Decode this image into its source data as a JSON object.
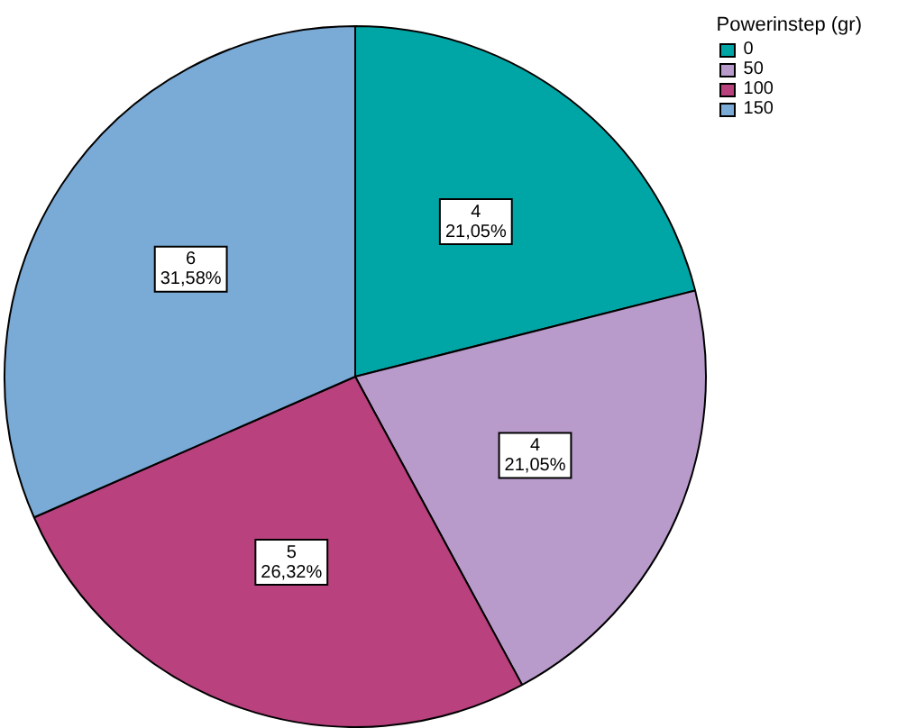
{
  "chart_data": {
    "type": "pie",
    "legend_title": "Powerinstep (gr)",
    "categories": [
      "0",
      "50",
      "100",
      "150"
    ],
    "values": [
      4,
      4,
      5,
      6
    ],
    "colors": [
      "#00a6a6",
      "#b99bcb",
      "#b8417e",
      "#7aaad6"
    ],
    "value_labels": [
      "4\n21,05%",
      "4\n21,05%",
      "5\n26,32%",
      "6\n31,58%"
    ],
    "legend": "top right"
  }
}
